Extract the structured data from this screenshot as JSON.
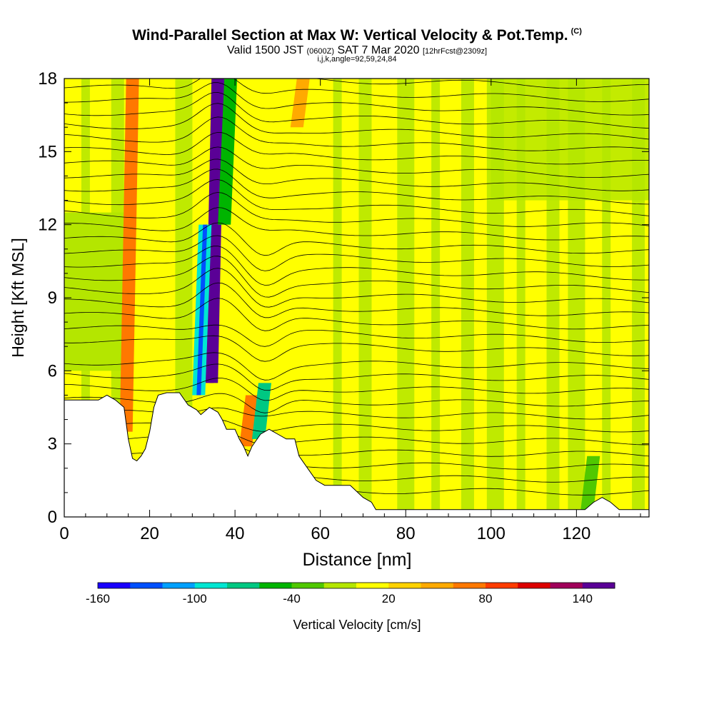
{
  "header": {
    "title": "Wind-Parallel Section at Max W: Vertical Velocity & Pot.Temp.",
    "title_mark": "(C)",
    "valid_main": "Valid 1500 JST",
    "valid_utc": "(0600Z)",
    "valid_date": "SAT 7 Mar 2020",
    "forecast_info": "[12hrFcst@2309z]",
    "index_info": "i,j,k,angle=92,59,24,84"
  },
  "chart_data": {
    "type": "heatmap",
    "xlabel": "Distance [nm]",
    "ylabel": "Height [Kft MSL]",
    "xlim": [
      0,
      137
    ],
    "ylim": [
      0,
      18
    ],
    "x_ticks": [
      "0",
      "20",
      "40",
      "60",
      "80",
      "100",
      "120"
    ],
    "y_ticks": [
      "0",
      "3",
      "6",
      "9",
      "12",
      "15",
      "18"
    ],
    "colorbar": {
      "label": "Vertical Velocity [cm/s]",
      "range": [
        -160,
        160
      ],
      "tick_labels": [
        "-160",
        "-100",
        "-40",
        "20",
        "80",
        "140"
      ],
      "colors": [
        "#1a00ff",
        "#0050ff",
        "#00a0ff",
        "#00e6d2",
        "#00c882",
        "#00b400",
        "#50c800",
        "#b4e600",
        "#ffff00",
        "#ffd200",
        "#ffaa00",
        "#ff7800",
        "#ff3c00",
        "#dc0000",
        "#a0005a",
        "#5a0096"
      ]
    },
    "terrain_kft": [
      [
        0,
        4.8
      ],
      [
        8,
        4.8
      ],
      [
        10,
        5.0
      ],
      [
        12,
        4.8
      ],
      [
        14,
        4.5
      ],
      [
        15,
        3.2
      ],
      [
        16,
        2.4
      ],
      [
        17,
        2.3
      ],
      [
        18,
        2.5
      ],
      [
        19,
        2.8
      ],
      [
        20,
        3.5
      ],
      [
        21,
        4.5
      ],
      [
        22,
        5.0
      ],
      [
        24,
        5.1
      ],
      [
        27,
        5.1
      ],
      [
        29,
        4.6
      ],
      [
        31,
        4.4
      ],
      [
        32,
        4.2
      ],
      [
        34,
        4.5
      ],
      [
        36,
        4.3
      ],
      [
        37,
        4.0
      ],
      [
        38,
        3.6
      ],
      [
        40,
        3.6
      ],
      [
        41,
        3.2
      ],
      [
        42,
        2.9
      ],
      [
        43,
        2.5
      ],
      [
        44,
        2.9
      ],
      [
        46,
        3.4
      ],
      [
        48,
        3.6
      ],
      [
        50,
        3.4
      ],
      [
        52,
        3.2
      ],
      [
        54,
        3.2
      ],
      [
        55,
        2.5
      ],
      [
        57,
        2.0
      ],
      [
        59,
        1.5
      ],
      [
        61,
        1.3
      ],
      [
        67,
        1.3
      ],
      [
        70,
        0.8
      ],
      [
        72,
        0.6
      ],
      [
        73,
        0.3
      ],
      [
        75,
        0.3
      ],
      [
        122,
        0.3
      ],
      [
        124,
        0.6
      ],
      [
        126,
        0.8
      ],
      [
        128,
        0.6
      ],
      [
        130,
        0.3
      ],
      [
        137,
        0.3
      ]
    ],
    "updraft_bands": [
      {
        "x": 16,
        "top": 18,
        "bottom": 3.5,
        "value": 60
      },
      {
        "x": 36,
        "top": 18,
        "bottom": 5.5,
        "value": 140
      },
      {
        "x": 44,
        "top": 5.0,
        "bottom": 2.9,
        "value": 60
      },
      {
        "x": 56,
        "top": 18,
        "bottom": 16,
        "value": 50
      }
    ],
    "downdraft_bands": [
      {
        "x": 33,
        "top": 12,
        "bottom": 5,
        "value": -90
      },
      {
        "x": 39,
        "top": 18,
        "bottom": 12,
        "value": -60
      },
      {
        "x": 47,
        "top": 5.5,
        "bottom": 3.2,
        "value": -70
      },
      {
        "x": 124,
        "top": 2.5,
        "bottom": 0.3,
        "value": -40
      }
    ]
  }
}
